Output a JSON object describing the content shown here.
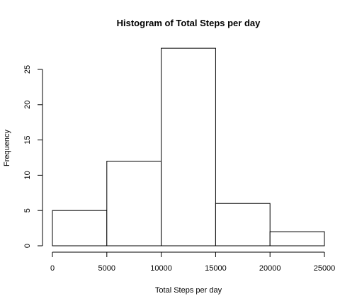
{
  "chart_data": {
    "type": "bar",
    "title": "Histogram of Total Steps per day",
    "xlabel": "Total Steps per day",
    "ylabel": "Frequency",
    "bins": [
      {
        "from": 0,
        "to": 5000,
        "count": 5
      },
      {
        "from": 5000,
        "to": 10000,
        "count": 12
      },
      {
        "from": 10000,
        "to": 15000,
        "count": 28
      },
      {
        "from": 15000,
        "to": 20000,
        "count": 6
      },
      {
        "from": 20000,
        "to": 25000,
        "count": 2
      }
    ],
    "xlim": [
      0,
      25000
    ],
    "ylim": [
      0,
      28
    ],
    "xticks": [
      "0",
      "5000",
      "10000",
      "15000",
      "20000",
      "25000"
    ],
    "yticks": [
      "0",
      "5",
      "10",
      "15",
      "20",
      "25"
    ],
    "grid": false,
    "bar_fill": "#ffffff",
    "bar_stroke": "#000000"
  }
}
